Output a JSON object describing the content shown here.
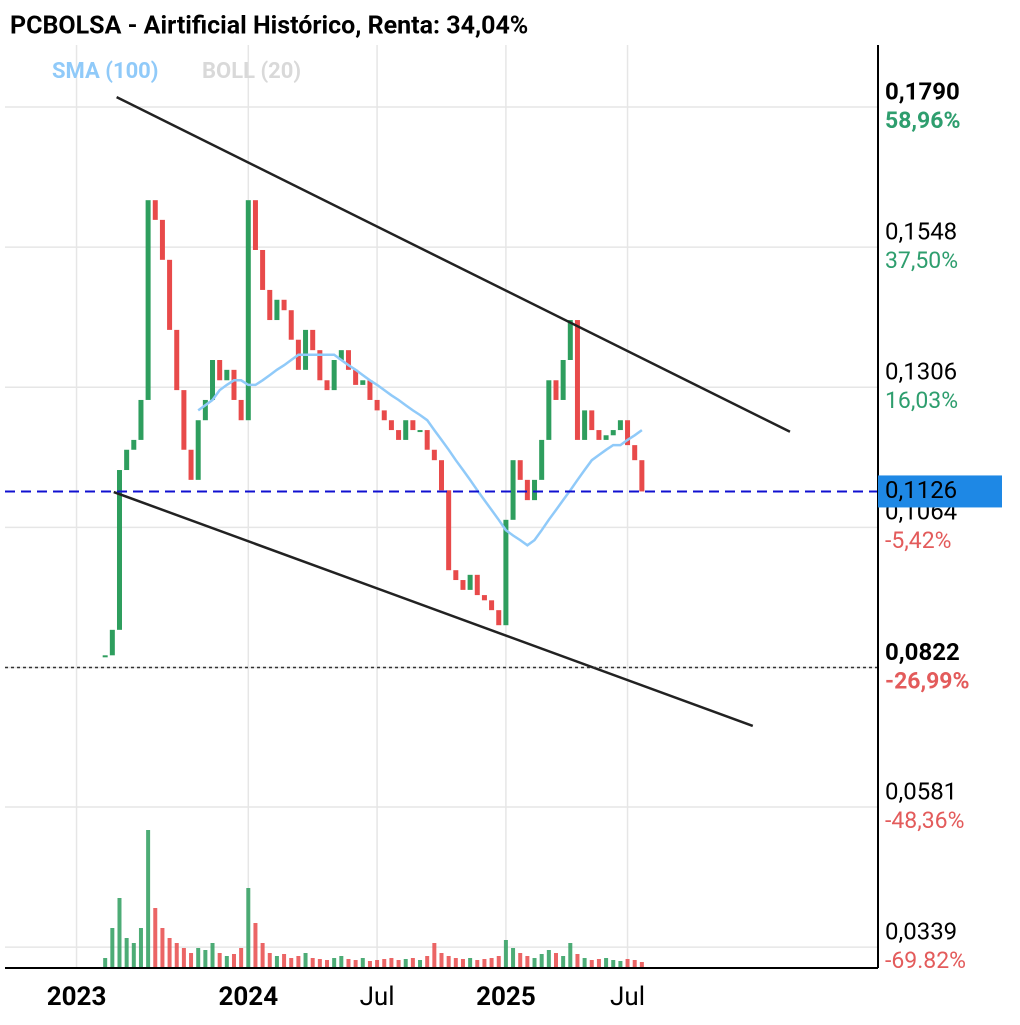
{
  "chart_data": {
    "type": "candlestick",
    "title": "PCBOLSA - Airtificial Histórico, Renta: 34,04%",
    "categories": [
      null,
      null,
      null,
      null,
      null,
      null,
      null,
      null,
      null,
      null,
      "2023",
      null,
      null,
      null,
      null,
      null,
      null,
      null,
      null,
      null,
      null,
      null,
      null,
      null,
      null,
      null,
      null,
      null,
      null,
      null,
      null,
      null,
      null,
      null,
      "2024",
      null,
      null,
      null,
      null,
      null,
      null,
      null,
      null,
      null,
      null,
      null,
      null,
      null,
      null,
      null,
      null,
      null,
      "Jul",
      null,
      null,
      null,
      null,
      null,
      null,
      null,
      null,
      null,
      null,
      null,
      null,
      null,
      null,
      null,
      null,
      null,
      "2025",
      null,
      null,
      null,
      null,
      null,
      null,
      null,
      null,
      null,
      null,
      null,
      null,
      null,
      null,
      null,
      null,
      "Jul",
      null,
      null,
      null,
      null,
      null,
      null,
      null,
      null,
      null,
      null,
      null,
      null,
      null,
      null,
      null,
      null,
      null,
      null,
      null,
      null,
      null,
      null,
      null,
      null,
      null,
      null,
      null,
      null,
      null,
      null,
      null,
      null,
      null,
      null,
      null
    ],
    "prices": {
      "up_color": "#2e9e5e",
      "down_color": "#e84a4a",
      "values": [
        null,
        null,
        null,
        null,
        null,
        null,
        null,
        null,
        null,
        null,
        null,
        null,
        null,
        null,
        0.0843,
        0.0887,
        0.1163,
        0.1198,
        0.1215,
        0.1284,
        0.1629,
        0.1595,
        0.1526,
        0.1405,
        0.1301,
        0.1198,
        0.1146,
        0.1249,
        0.1284,
        0.1353,
        0.1318,
        0.1336,
        0.1284,
        0.1249,
        0.1629,
        0.1543,
        0.1474,
        0.1422,
        0.1457,
        0.1439,
        0.1388,
        0.1336,
        0.1405,
        0.137,
        0.1318,
        0.1301,
        0.1353,
        0.137,
        0.1336,
        0.131,
        0.1318,
        0.1284,
        0.1266,
        0.1249,
        0.1232,
        0.1215,
        0.1249,
        0.1232,
        0.1232,
        0.1198,
        0.118,
        0.1128,
        0.099,
        0.0973,
        0.0956,
        0.0982,
        0.0947,
        0.0938,
        0.0921,
        0.0895,
        0.1077,
        0.118,
        0.1146,
        0.1111,
        0.1146,
        0.1215,
        0.1318,
        0.1284,
        0.1353,
        0.1422,
        0.1215,
        0.1266,
        0.1232,
        0.1215,
        0.1223,
        0.1232,
        0.1249,
        0.1206,
        0.118,
        0.1126,
        null,
        null,
        null,
        null,
        null,
        null,
        null,
        null,
        null,
        null,
        null,
        null,
        null,
        null,
        null,
        null,
        null,
        null,
        null,
        null,
        null,
        null,
        null,
        null,
        null,
        null,
        null,
        null,
        null,
        null,
        null,
        null,
        null,
        null,
        null
      ]
    },
    "sma": {
      "name": "SMA (100)",
      "color": "#90caf9",
      "values": [
        null,
        null,
        null,
        null,
        null,
        null,
        null,
        null,
        null,
        null,
        null,
        null,
        null,
        null,
        null,
        null,
        null,
        null,
        null,
        null,
        null,
        null,
        null,
        null,
        null,
        null,
        null,
        0.1266,
        0.1275,
        0.1284,
        0.1301,
        0.131,
        0.1318,
        0.1318,
        0.131,
        0.131,
        0.1318,
        0.1327,
        0.1336,
        0.1344,
        0.1353,
        0.1362,
        0.1362,
        0.1362,
        0.1362,
        0.1362,
        0.1362,
        0.1353,
        0.1344,
        0.1336,
        0.1327,
        0.1318,
        0.131,
        0.1301,
        0.1292,
        0.1284,
        0.1275,
        0.1266,
        0.1258,
        0.1249,
        0.1232,
        0.1215,
        0.1198,
        0.118,
        0.1163,
        0.1146,
        0.1128,
        0.1111,
        0.1094,
        0.1077,
        0.1059,
        0.105,
        0.1042,
        0.1033,
        0.1042,
        0.1059,
        0.1077,
        0.1094,
        0.1111,
        0.1128,
        0.1146,
        0.1163,
        0.118,
        0.1189,
        0.1198,
        0.1206,
        0.1206,
        0.1215,
        0.1223,
        0.1232,
        null,
        null,
        null,
        null,
        null,
        null,
        null,
        null,
        null,
        null,
        null,
        null,
        null,
        null,
        null,
        null,
        null,
        null,
        null,
        null,
        null,
        null,
        null,
        null,
        null,
        null,
        null,
        null,
        null,
        null,
        null,
        null,
        null,
        null,
        null
      ]
    },
    "boll": {
      "name": "BOLL (20)",
      "color": "#d9d9d9"
    },
    "volume": {
      "lim": [
        0,
        140
      ],
      "values": [
        null,
        null,
        null,
        null,
        null,
        null,
        null,
        null,
        null,
        null,
        null,
        null,
        null,
        null,
        10,
        40,
        70,
        30,
        25,
        40,
        138,
        60,
        40,
        30,
        25,
        20,
        15,
        20,
        18,
        25,
        15,
        12,
        14,
        20,
        80,
        45,
        25,
        15,
        12,
        14,
        10,
        12,
        15,
        10,
        9,
        8,
        10,
        12,
        9,
        8,
        10,
        7,
        8,
        9,
        10,
        8,
        9,
        10,
        8,
        12,
        25,
        15,
        12,
        10,
        9,
        10,
        8,
        9,
        10,
        12,
        28,
        20,
        15,
        12,
        10,
        14,
        18,
        15,
        12,
        25,
        14,
        10,
        8,
        9,
        10,
        8,
        7,
        9,
        8,
        6,
        null,
        null,
        null,
        null,
        null,
        null,
        null,
        null,
        null,
        null,
        null,
        null,
        null,
        null,
        null,
        null,
        null,
        null,
        null,
        null,
        null,
        null,
        null,
        null,
        null,
        null,
        null,
        null,
        null,
        null,
        null,
        null,
        null,
        null,
        null
      ]
    },
    "trendlines": [
      {
        "x": [
          15.6,
          109.7
        ],
        "values": [
          0.1807,
          0.1229
        ]
      },
      {
        "x": [
          15.2,
          104.5
        ],
        "values": [
          0.1125,
          0.0721
        ]
      }
    ],
    "last_price": {
      "value": 0.1126,
      "label": "0,1126",
      "color": "#1e88e5"
    },
    "low_line": 0.0822,
    "ylim": [
      0.0303,
      0.1897
    ],
    "yticks": [
      {
        "value": 0.179,
        "label": "0,1790"
      },
      {
        "value": 0.1548,
        "label": "0,1548"
      },
      {
        "value": 0.1306,
        "label": "0,1306"
      },
      {
        "value": 0.1064,
        "label": "0,1064"
      },
      {
        "value": 0.0822,
        "label": "0,0822"
      },
      {
        "value": 0.0581,
        "label": "0,0581"
      },
      {
        "value": 0.0339,
        "label": "0,0339"
      }
    ],
    "y2lim": [
      -73.04,
      68.47
    ],
    "y2ticks": [
      {
        "value": 58.96,
        "label": "58,96%"
      },
      {
        "value": 37.5,
        "label": "37,50%"
      },
      {
        "value": 16.03,
        "label": "16,03%"
      },
      {
        "value": -5.42,
        "label": "-5,42%"
      },
      {
        "value": -26.99,
        "label": "-26,99%"
      },
      {
        "value": -48.36,
        "label": "-48,36%"
      },
      {
        "value": -69.82,
        "label": "-69.82%"
      }
    ],
    "grid": true
  }
}
